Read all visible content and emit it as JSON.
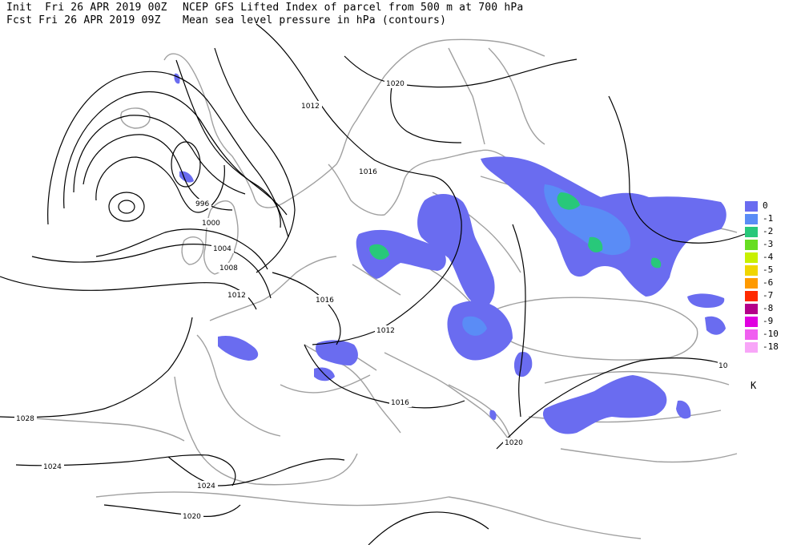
{
  "header": {
    "init_line": "Init  Fri 26 APR 2019 00Z",
    "fcst_line": "Fcst Fri 26 APR 2019 09Z",
    "title_line1": "NCEP GFS Lifted Index of parcel from 500 m at 700 hPa",
    "title_line2": "Mean sea level pressure in hPa (contours)"
  },
  "legend": {
    "unit": "K",
    "items": [
      {
        "label": "0",
        "color": "#6a6cf0"
      },
      {
        "label": "-1",
        "color": "#5a8cf6"
      },
      {
        "label": "-2",
        "color": "#28c87a"
      },
      {
        "label": "-3",
        "color": "#66dd22"
      },
      {
        "label": "-4",
        "color": "#c8f000"
      },
      {
        "label": "-5",
        "color": "#f0d600"
      },
      {
        "label": "-6",
        "color": "#ff9a00"
      },
      {
        "label": "-7",
        "color": "#ff2a00"
      },
      {
        "label": "-8",
        "color": "#b4008a"
      },
      {
        "label": "-9",
        "color": "#e000e0"
      },
      {
        "label": "-10",
        "color": "#f060f0"
      },
      {
        "label": "-18",
        "color": "#f8a6f8"
      }
    ]
  },
  "isobars": {
    "labels": [
      "1020",
      "1012",
      "1016",
      "996",
      "1000",
      "1004",
      "1008",
      "1012",
      "1016",
      "1012",
      "1016",
      "1020",
      "1028",
      "1024",
      "1024",
      "1020",
      "10"
    ]
  },
  "colors": {
    "coast": "#a0a0a0",
    "contour": "#000000",
    "li_0": "#6a6cf0",
    "li_1": "#5a8cf6",
    "li_2": "#28c87a"
  }
}
